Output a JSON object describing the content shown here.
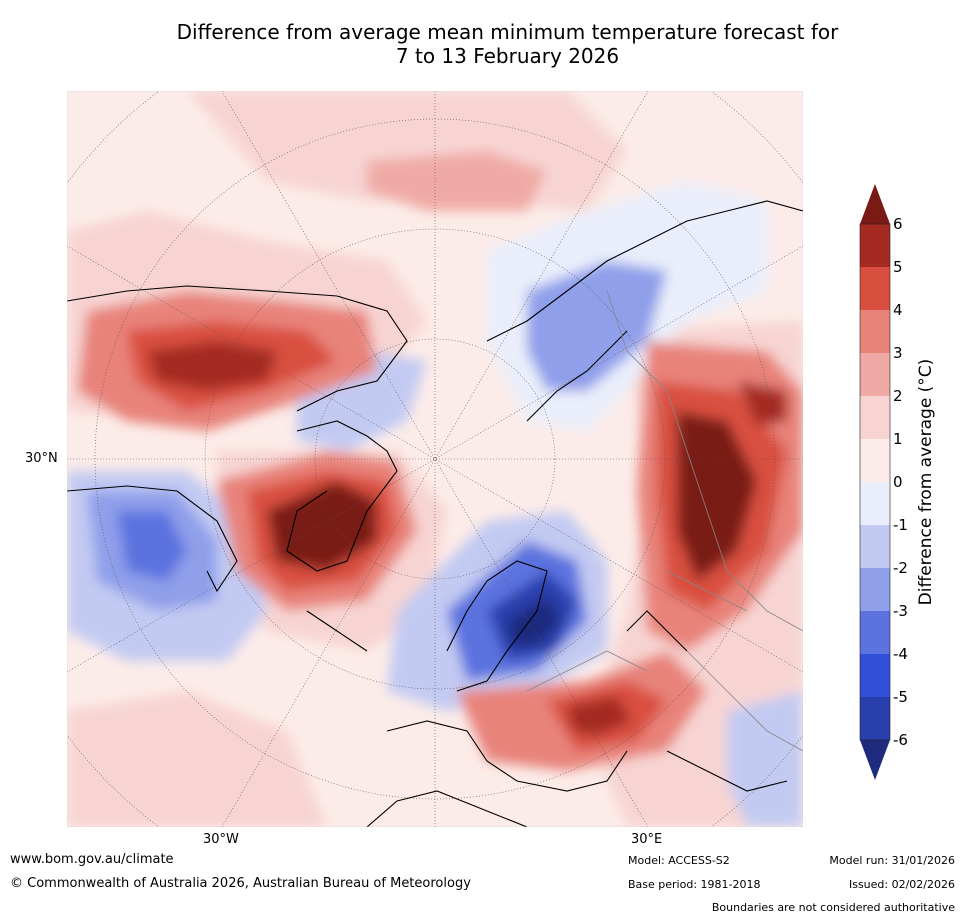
{
  "title": {
    "line1": "Difference from average mean minimum temperature forecast for",
    "line2": "7 to 13 February 2026"
  },
  "map": {
    "lat_label": "30°N",
    "lon_labels": [
      "30°W",
      "30°E"
    ]
  },
  "colorbar": {
    "label": "Difference from average (°C)",
    "ticks": [
      "6",
      "5",
      "4",
      "3",
      "2",
      "1",
      "0",
      "-1",
      "-2",
      "-3",
      "-4",
      "-5",
      "-6"
    ],
    "colors": {
      "over": "#7a1a14",
      "c5_6": "#a52a22",
      "c4_5": "#d94f3f",
      "c3_4": "#e8837a",
      "c2_3": "#f0aaa5",
      "c1_2": "#f7d4d2",
      "c0_1": "#fcece9",
      "cm1_0": "#eaeefb",
      "cm2_m1": "#c2caf2",
      "cm3_m2": "#8f9fea",
      "cm4_m3": "#5b72df",
      "cm5_m4": "#3050d8",
      "cm6_m5": "#2a3fae",
      "under": "#1f2b7e"
    }
  },
  "footer": {
    "url": "www.bom.gov.au/climate",
    "copyright": "© Commonwealth of Australia 2026, Australian Bureau of Meteorology",
    "model": "Model: ACCESS-S2",
    "base_period": "Base period: 1981-2018",
    "model_run": "Model run: 31/01/2026",
    "issued": "Issued: 02/02/2026",
    "disclaimer": "Boundaries are not considered authoritative"
  }
}
